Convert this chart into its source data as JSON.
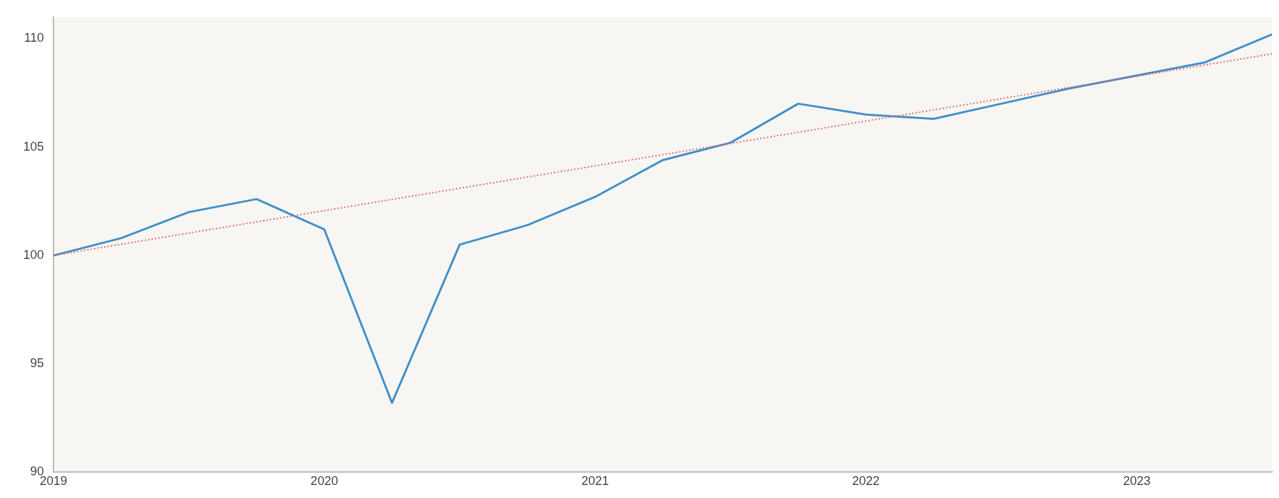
{
  "chart_data": {
    "type": "line",
    "xlim": [
      2019,
      2023.5
    ],
    "xticks": [
      2019,
      2020,
      2021,
      2022,
      2023
    ],
    "ylim": [
      90,
      111
    ],
    "yticks": [
      90,
      95,
      100,
      105,
      110
    ],
    "grid": false,
    "legend": false,
    "marker": "none",
    "series": [
      {
        "color": "#3f8fc9",
        "line_style": "solid",
        "x": [
          2019,
          2019.25,
          2019.5,
          2019.75,
          2020,
          2020.25,
          2020.5,
          2020.75,
          2021,
          2021.25,
          2021.5,
          2021.75,
          2022,
          2022.25,
          2022.5,
          2022.75,
          2023,
          2023.25,
          2023.5
        ],
        "values": [
          100,
          100.8,
          102,
          102.6,
          101.2,
          93.2,
          100.5,
          101.4,
          102.7,
          104.4,
          105.2,
          107,
          106.5,
          106.3,
          107,
          107.7,
          108.3,
          108.9,
          110.2
        ]
      },
      {
        "type": "line",
        "color": "#e06666",
        "line_style": "dotted",
        "x": [
          2019,
          2023.5
        ],
        "values": [
          100,
          109.3
        ]
      }
    ]
  }
}
